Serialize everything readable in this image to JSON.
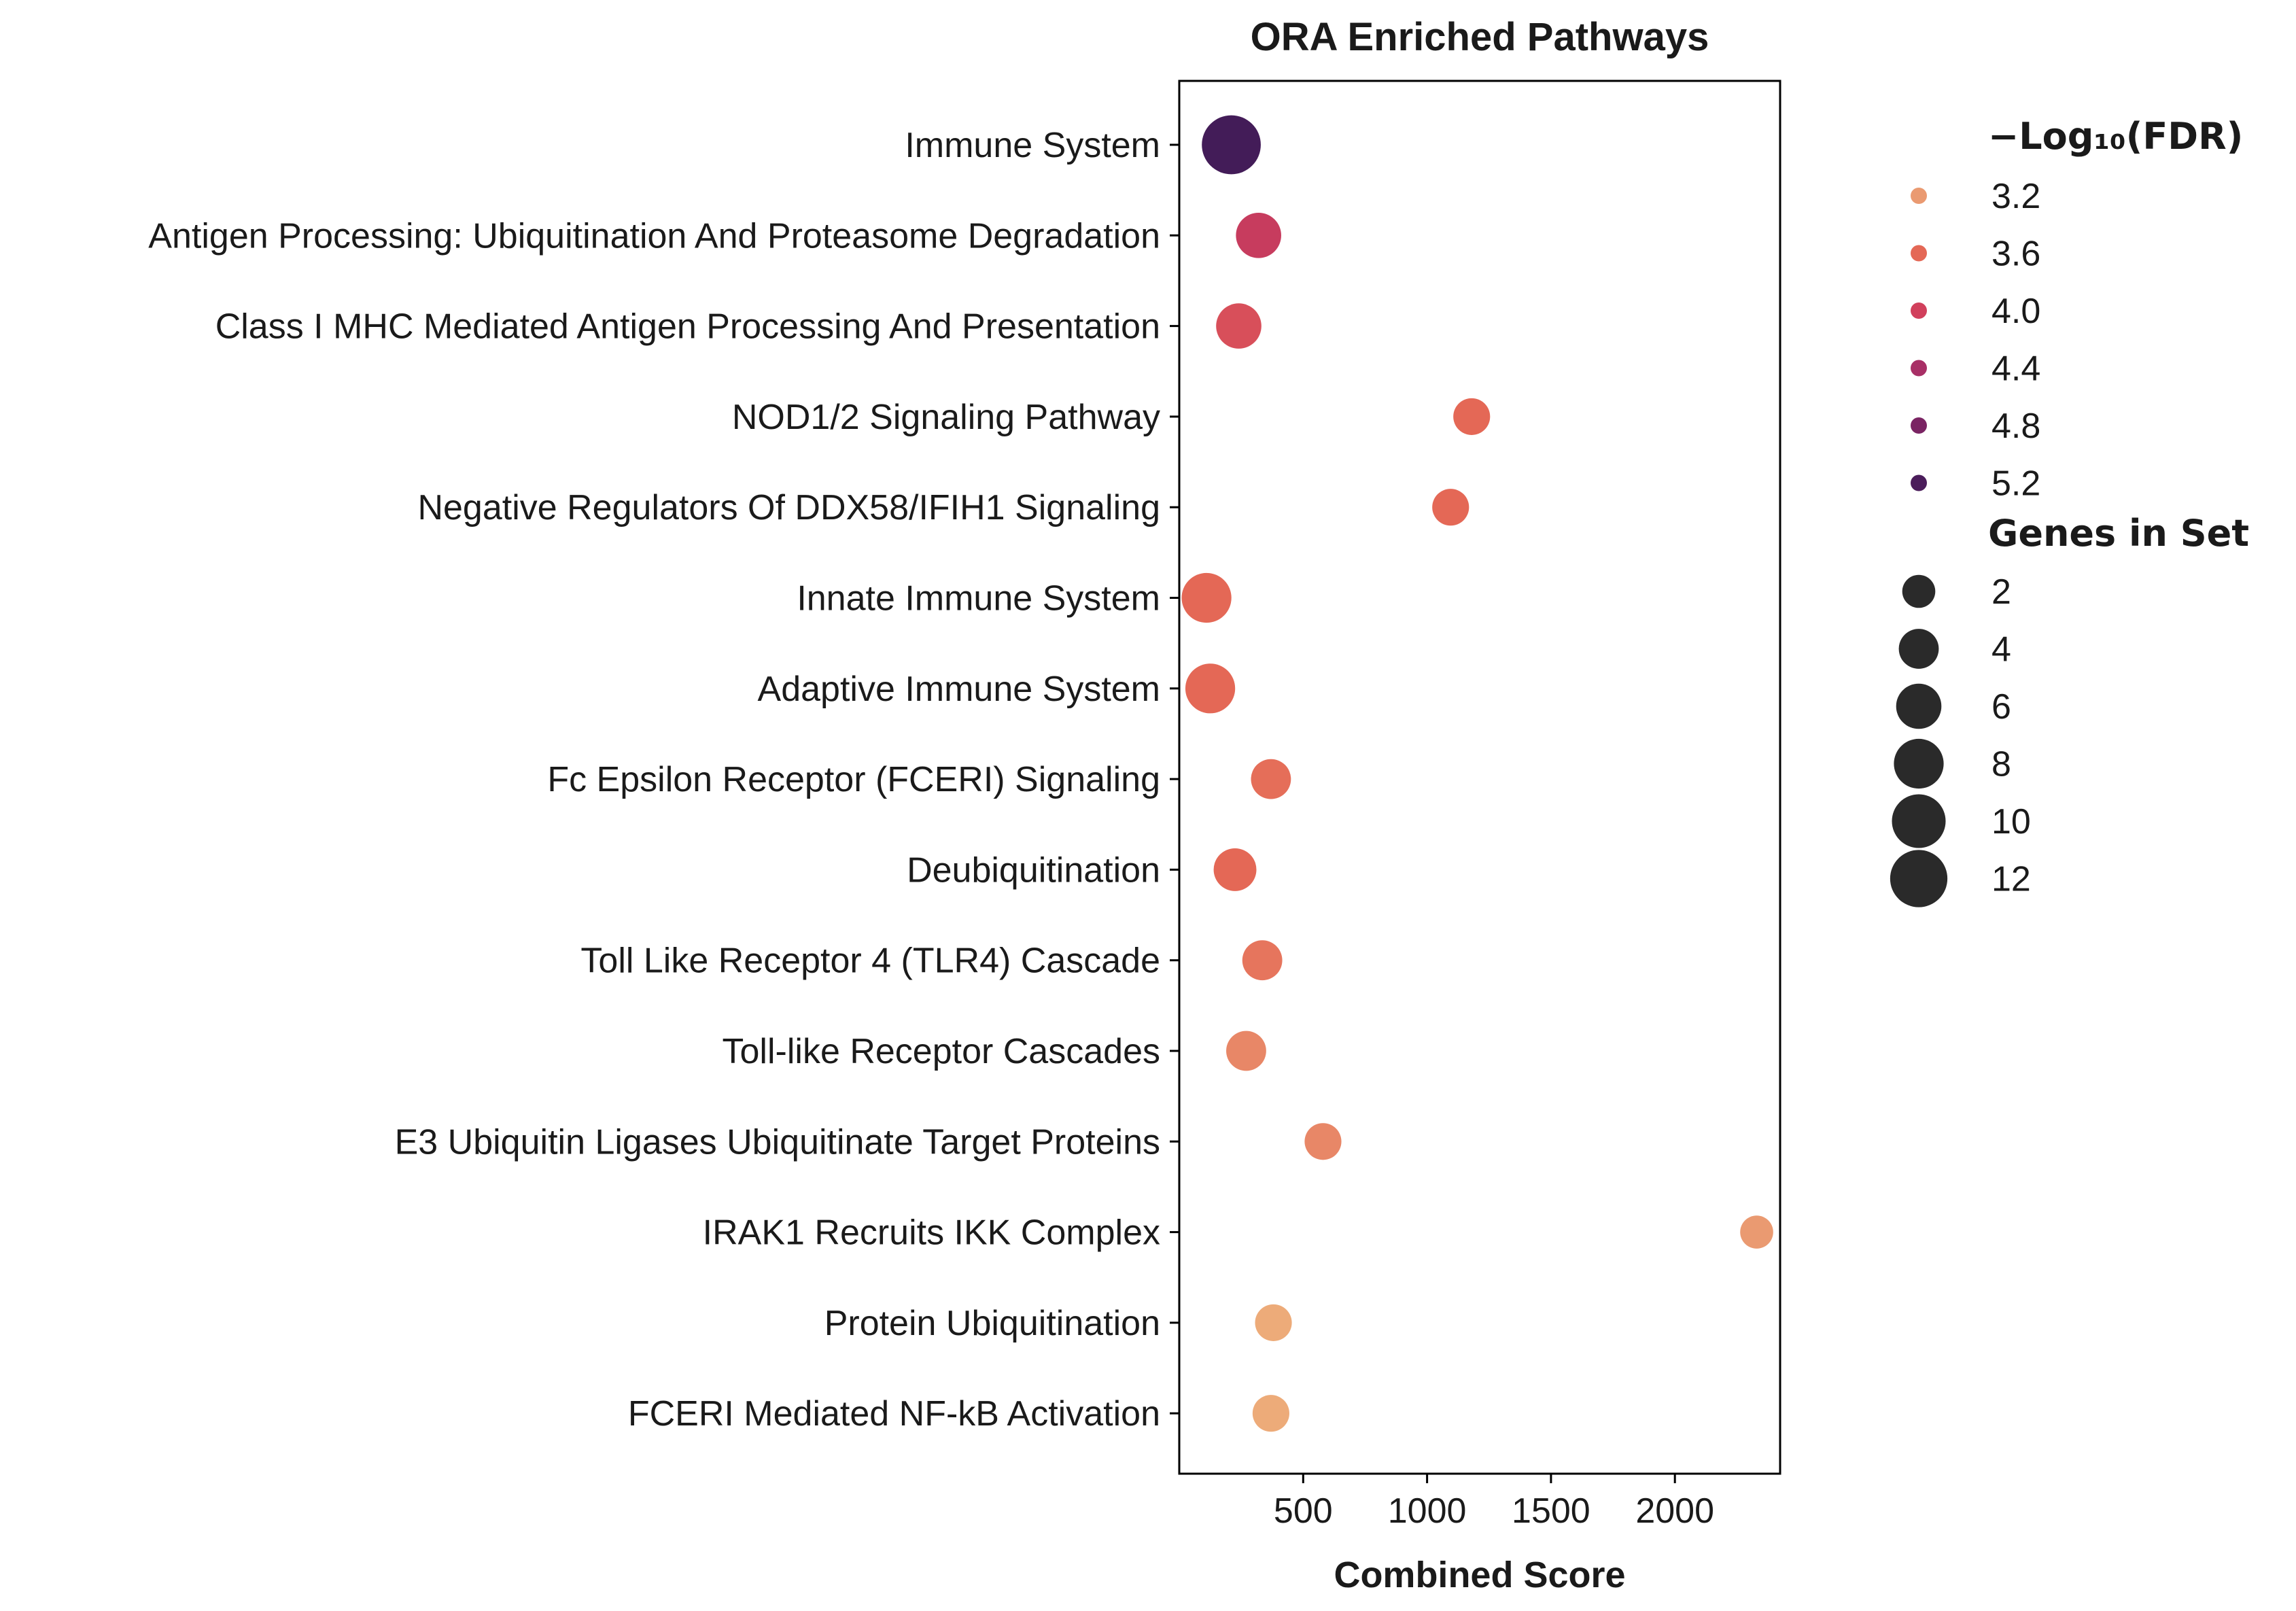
{
  "chart_data": {
    "type": "scatter",
    "title": "ORA Enriched Pathways",
    "xlabel": "Combined Score",
    "ylabel": "",
    "xlim": [
      0,
      2450
    ],
    "xticks": [
      500,
      1000,
      1500,
      2000
    ],
    "grid": false,
    "legend_placement": "right",
    "categories": [
      "Immune System",
      "Antigen Processing: Ubiquitination And Proteasome Degradation",
      "Class I MHC Mediated Antigen Processing And Presentation",
      "NOD1/2 Signaling Pathway",
      "Negative Regulators Of DDX58/IFIH1 Signaling",
      "Innate Immune System",
      "Adaptive Immune System",
      "Fc Epsilon Receptor (FCERI) Signaling",
      "Deubiquitination",
      "Toll Like Receptor 4 (TLR4) Cascade",
      "Toll-like Receptor Cascades",
      "E3 Ubiquitin Ligases Ubiquitinate Target Proteins",
      "IRAK1 Recruits IKK Complex",
      "Protein Ubiquitination",
      "FCERI Mediated NF-kB Activation"
    ],
    "points": [
      {
        "x": 210,
        "neg_log10_fdr": 5.3,
        "genes": 13
      },
      {
        "x": 320,
        "neg_log10_fdr": 4.1,
        "genes": 6
      },
      {
        "x": 240,
        "neg_log10_fdr": 3.85,
        "genes": 6
      },
      {
        "x": 1180,
        "neg_log10_fdr": 3.6,
        "genes": 3
      },
      {
        "x": 1095,
        "neg_log10_fdr": 3.6,
        "genes": 3
      },
      {
        "x": 110,
        "neg_log10_fdr": 3.6,
        "genes": 8
      },
      {
        "x": 125,
        "neg_log10_fdr": 3.6,
        "genes": 8
      },
      {
        "x": 370,
        "neg_log10_fdr": 3.55,
        "genes": 4
      },
      {
        "x": 225,
        "neg_log10_fdr": 3.6,
        "genes": 5
      },
      {
        "x": 335,
        "neg_log10_fdr": 3.5,
        "genes": 4
      },
      {
        "x": 270,
        "neg_log10_fdr": 3.35,
        "genes": 4
      },
      {
        "x": 580,
        "neg_log10_fdr": 3.35,
        "genes": 3
      },
      {
        "x": 2330,
        "neg_log10_fdr": 3.2,
        "genes": 2
      },
      {
        "x": 380,
        "neg_log10_fdr": 3.05,
        "genes": 3
      },
      {
        "x": 370,
        "neg_log10_fdr": 3.05,
        "genes": 3
      }
    ],
    "legend": {
      "color_title": "−Log₁₀(FDR)",
      "color_items": [
        "3.2",
        "3.6",
        "4.0",
        "4.4",
        "4.8",
        "5.2"
      ],
      "color_values": [
        3.2,
        3.6,
        4.0,
        4.4,
        4.8,
        5.2
      ],
      "size_title": "Genes in Set",
      "size_items": [
        "2",
        "4",
        "6",
        "8",
        "10",
        "12"
      ],
      "size_values": [
        2,
        4,
        6,
        8,
        10,
        12
      ]
    },
    "colormap": "flare",
    "colors": {
      "c3.0": "#eeb07c",
      "c3.2": "#ea9a71",
      "c3.6": "#e46856",
      "c4.0": "#d1405c",
      "c4.4": "#a82f66",
      "c4.8": "#7a2463",
      "c5.2": "#4b1d5b",
      "c5.4": "#3b1a55",
      "marker": "#2a2a2a",
      "axis": "#000000"
    }
  }
}
